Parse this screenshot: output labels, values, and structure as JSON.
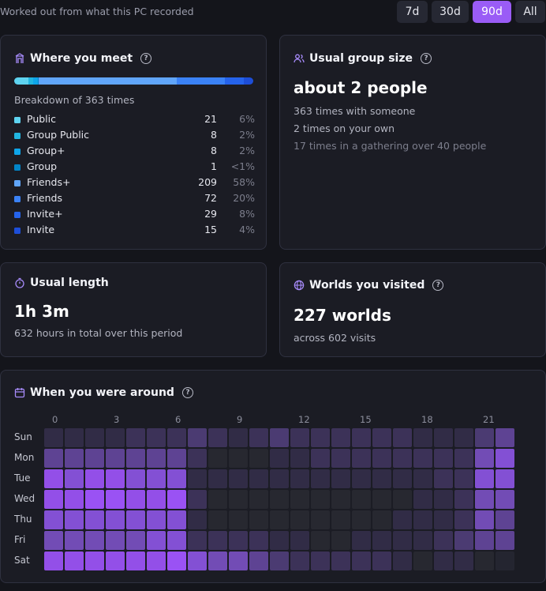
{
  "header": {
    "subtitle": "Worked out from what this PC recorded",
    "ranges": [
      {
        "label": "7d",
        "active": false
      },
      {
        "label": "30d",
        "active": false
      },
      {
        "label": "90d",
        "active": true
      },
      {
        "label": "All",
        "active": false
      }
    ]
  },
  "where": {
    "title": "Where you meet",
    "breakdown_text": "Breakdown of 363 times",
    "items": [
      {
        "label": "Public",
        "count": "21",
        "pct": "6%",
        "share": 6,
        "color": "#5ed3f0"
      },
      {
        "label": "Group Public",
        "count": "8",
        "pct": "2%",
        "share": 2,
        "color": "#22b5e0"
      },
      {
        "label": "Group+",
        "count": "8",
        "pct": "2%",
        "share": 2,
        "color": "#0ea5e9"
      },
      {
        "label": "Group",
        "count": "1",
        "pct": "<1%",
        "share": 0.3,
        "color": "#0284c7"
      },
      {
        "label": "Friends+",
        "count": "209",
        "pct": "58%",
        "share": 58,
        "color": "#60a5fa"
      },
      {
        "label": "Friends",
        "count": "72",
        "pct": "20%",
        "share": 20,
        "color": "#3b82f6"
      },
      {
        "label": "Invite+",
        "count": "29",
        "pct": "8%",
        "share": 8,
        "color": "#2563eb"
      },
      {
        "label": "Invite",
        "count": "15",
        "pct": "4%",
        "share": 4,
        "color": "#1d4ed8"
      }
    ]
  },
  "group_size": {
    "title": "Usual group size",
    "value": "about 2 people",
    "lines": [
      "363 times with someone",
      "2 times on your own",
      "17 times in a gathering over 40 people"
    ]
  },
  "length": {
    "title": "Usual length",
    "value": "1h 3m",
    "line": "632 hours in total over this period"
  },
  "worlds": {
    "title": "Worlds you visited",
    "value": "227 worlds",
    "line": "across 602 visits"
  },
  "heatmap": {
    "title": "When you were around",
    "hour_labels": [
      "0",
      "3",
      "6",
      "9",
      "12",
      "15",
      "18",
      "21"
    ],
    "days": [
      "Sun",
      "Mon",
      "Tue",
      "Wed",
      "Thu",
      "Fri",
      "Sat"
    ],
    "levels": [
      [
        2,
        2,
        2,
        2,
        3,
        3,
        3,
        4,
        3,
        2,
        3,
        4,
        3,
        3,
        3,
        3,
        3,
        3,
        2,
        2,
        2,
        4,
        5
      ],
      [
        5,
        5,
        5,
        5,
        5,
        5,
        5,
        3,
        1,
        1,
        1,
        2,
        2,
        3,
        3,
        3,
        3,
        3,
        3,
        3,
        3,
        6,
        7
      ],
      [
        8,
        7,
        8,
        8,
        7,
        7,
        7,
        2,
        2,
        2,
        2,
        2,
        2,
        2,
        2,
        2,
        2,
        2,
        2,
        3,
        3,
        7,
        7
      ],
      [
        8,
        8,
        9,
        9,
        8,
        8,
        9,
        3,
        1,
        1,
        1,
        1,
        1,
        1,
        1,
        1,
        1,
        1,
        2,
        2,
        3,
        6,
        6
      ],
      [
        7,
        7,
        7,
        7,
        7,
        7,
        7,
        2,
        1,
        1,
        1,
        1,
        1,
        1,
        1,
        1,
        1,
        2,
        2,
        2,
        3,
        6,
        5
      ],
      [
        6,
        6,
        6,
        6,
        6,
        7,
        7,
        3,
        3,
        3,
        3,
        2,
        2,
        1,
        1,
        2,
        2,
        2,
        2,
        3,
        4,
        5,
        5
      ],
      [
        8,
        8,
        8,
        8,
        8,
        8,
        9,
        7,
        6,
        6,
        5,
        4,
        3,
        3,
        3,
        3,
        3,
        2,
        1,
        2,
        2,
        1,
        0
      ]
    ],
    "level_colors": [
      "#242530",
      "#272830",
      "#312c46",
      "#3c3258",
      "#4b3b72",
      "#5e4393",
      "#724cb5",
      "#8350d4",
      "#934fe8",
      "#9a52f4"
    ]
  }
}
